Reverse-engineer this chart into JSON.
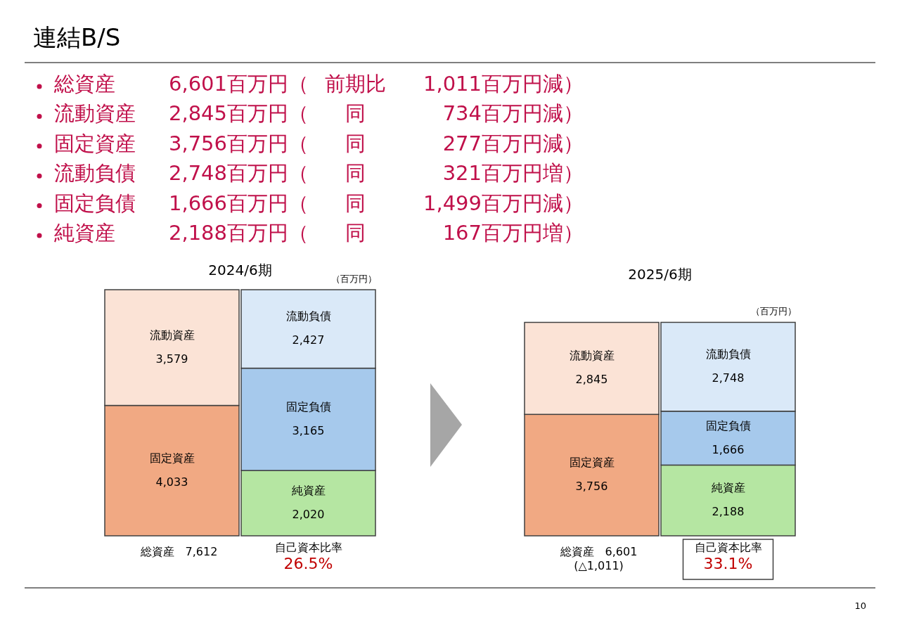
{
  "chart_data": [
    {
      "type": "other",
      "title": "連結B/S",
      "annotations": [
        "総資産",
        "6,601百万円（",
        "前期比",
        "1,011百万円減）",
        "流動資産",
        "2,845百万円（",
        "同",
        "734百万円減）",
        "固定資産",
        "3,756百万円（",
        "同",
        "277百万円減）",
        "流動負債",
        "2,748百万円（",
        "同",
        "321百万円増）",
        "固定負債",
        "1,666百万円（",
        "同",
        "1,499百万円減）",
        "純資産",
        "2,188百万円（",
        "同",
        "167百万円増）",
        "10"
      ]
    },
    {
      "type": "bar",
      "title": "2024/6期",
      "subtitle": "（百万円）",
      "stacked": true,
      "categories": [
        null,
        null
      ],
      "series": [
        {
          "name": "固定資産",
          "color": "#f1a983",
          "values": [
            4033,
            null
          ],
          "value_labels": [
            "4,033",
            null
          ]
        },
        {
          "name": "流動資産",
          "color": "#fbe3d6",
          "values": [
            3579,
            null
          ],
          "value_labels": [
            "3,579",
            null
          ]
        },
        {
          "name": "純資産",
          "color": "#b5e6a2",
          "values": [
            null,
            2020
          ],
          "value_labels": [
            null,
            "2,020"
          ]
        },
        {
          "name": "固定負債",
          "color": "#a6c9ec",
          "values": [
            null,
            3165
          ],
          "value_labels": [
            null,
            "3,165"
          ]
        },
        {
          "name": "流動負債",
          "color": "#dae9f8",
          "values": [
            null,
            2427
          ],
          "value_labels": [
            null,
            "2,427"
          ]
        }
      ],
      "annotations": [
        "総資産　7,612",
        "自己資本比率",
        "26.5%"
      ]
    },
    {
      "type": "bar",
      "title": "2025/6期",
      "subtitle": "（百万円）",
      "stacked": true,
      "categories": [
        null,
        null
      ],
      "series": [
        {
          "name": "固定資産",
          "color": "#f1a983",
          "values": [
            3756,
            null
          ],
          "value_labels": [
            "3,756",
            null
          ]
        },
        {
          "name": "流動資産",
          "color": "#fbe3d6",
          "values": [
            2845,
            null
          ],
          "value_labels": [
            "2,845",
            null
          ]
        },
        {
          "name": "純資産",
          "color": "#b5e6a2",
          "values": [
            null,
            2188
          ],
          "value_labels": [
            null,
            "2,188"
          ]
        },
        {
          "name": "固定負債",
          "color": "#a6c9ec",
          "values": [
            null,
            1666
          ],
          "value_labels": [
            null,
            "1,666"
          ]
        },
        {
          "name": "流動負債",
          "color": "#dae9f8",
          "values": [
            null,
            2748
          ],
          "value_labels": [
            null,
            "2,748"
          ]
        }
      ],
      "annotations": [
        "総資産　6,601",
        "(△1,011)",
        "自己資本比率",
        "33.1%"
      ]
    }
  ]
}
